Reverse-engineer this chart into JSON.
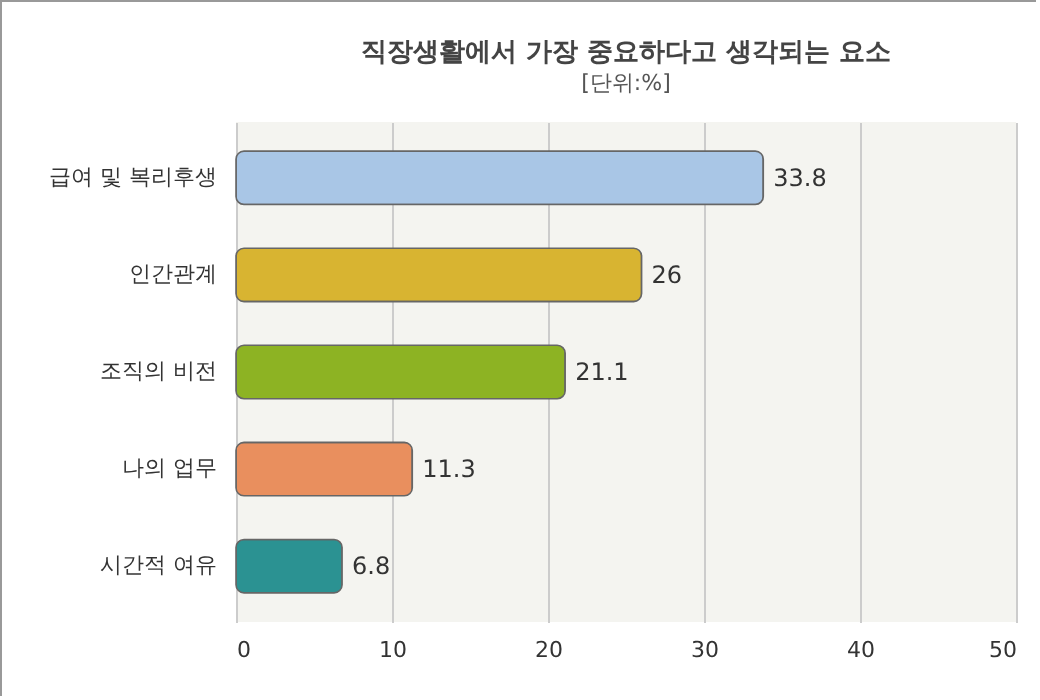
{
  "chart_data": {
    "type": "bar",
    "orientation": "horizontal",
    "title": "직장생활에서 가장 중요하다고 생각되는 요소",
    "subtitle": "[단위:%]",
    "categories": [
      "급여 및 복리후생",
      "인간관계",
      "조직의 비전",
      "나의 업무",
      "시간적 여유"
    ],
    "values": [
      33.8,
      26,
      21.1,
      11.3,
      6.8
    ],
    "colors": [
      "#a9c6e6",
      "#d8b431",
      "#8db323",
      "#e98f5e",
      "#2b9292"
    ],
    "xlim": [
      0,
      50
    ],
    "xticks": [
      0,
      10,
      20,
      30,
      40,
      50
    ],
    "grid": "x",
    "data_labels": true
  }
}
